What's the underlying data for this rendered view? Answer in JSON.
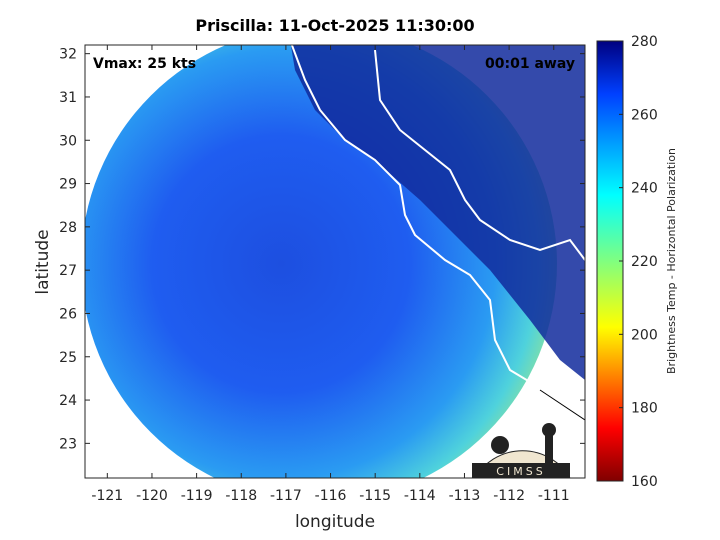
{
  "chart_data": {
    "type": "heatmap",
    "title": "Priscilla: 11-Oct-2025 11:30:00",
    "xlabel": "longitude",
    "ylabel": "latitude",
    "xlim": [
      -121.5,
      -110.3
    ],
    "ylim": [
      22.2,
      32.2
    ],
    "x_ticks": [
      -121,
      -120,
      -119,
      -118,
      -117,
      -116,
      -115,
      -114,
      -113,
      -112,
      -111
    ],
    "y_ticks": [
      23,
      24,
      25,
      26,
      27,
      28,
      29,
      30,
      31,
      32
    ],
    "annotations": {
      "left": "Vmax: 25 kts",
      "right": "00:01 away"
    },
    "colorbar": {
      "label": "Brightness Temp - Horizontal Polarization",
      "range": [
        160,
        280
      ],
      "ticks": [
        160,
        180,
        200,
        220,
        240,
        260,
        280
      ],
      "colormap": "jet"
    },
    "swath": {
      "center_lon": -115.8,
      "center_lat": 27.2,
      "radius_deg": 5.1
    },
    "logo_text": "CIMSS"
  }
}
